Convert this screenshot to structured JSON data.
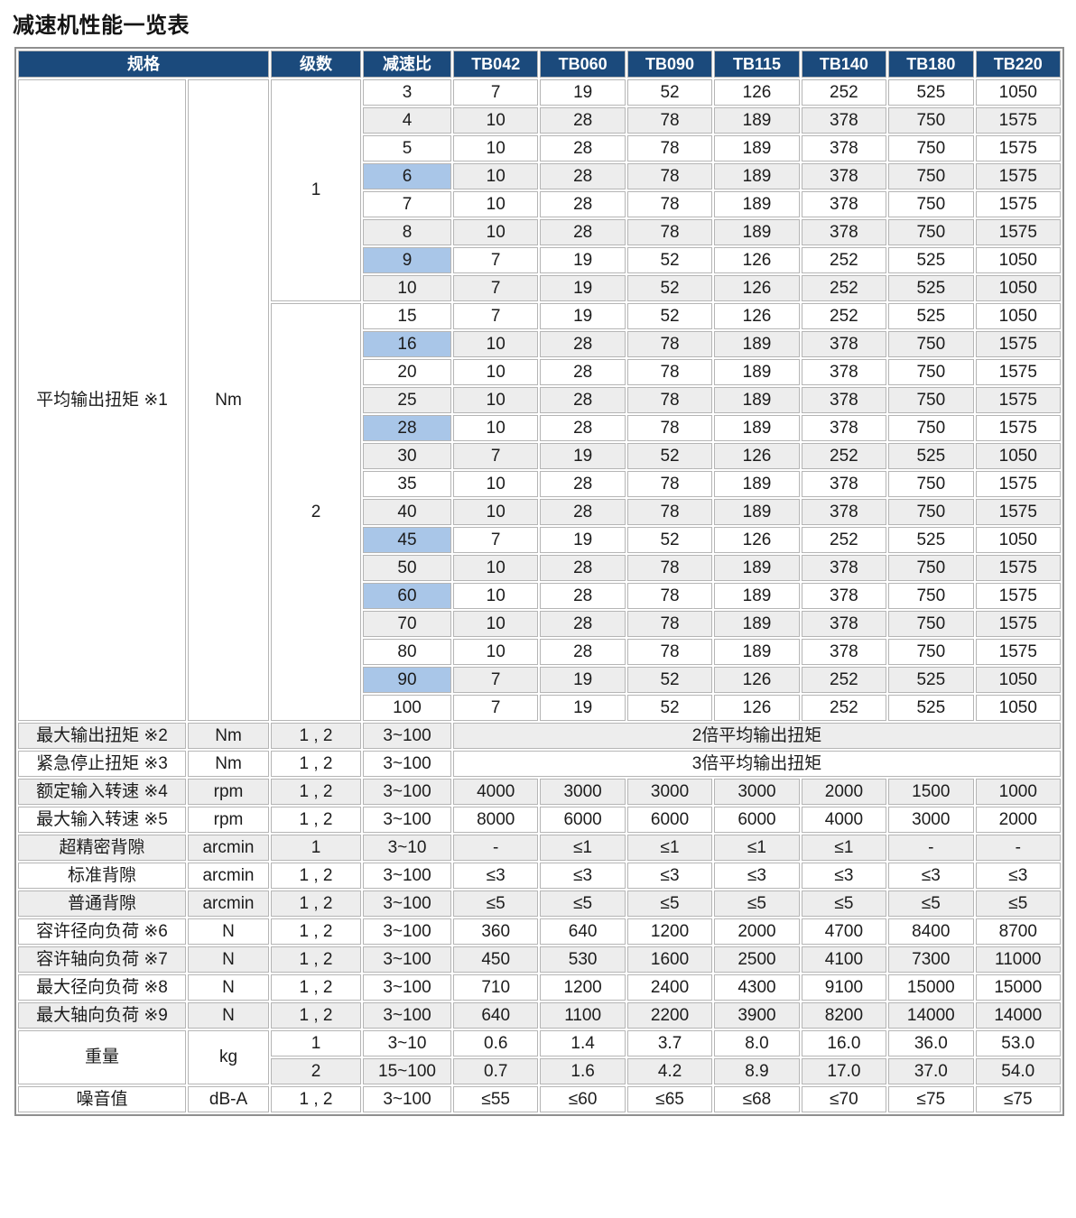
{
  "page_title": "减速机性能一览表",
  "colors": {
    "header_bg": "#1b4a7c",
    "header_text": "#ffffff",
    "row_stripe": "#ededed",
    "ratio_highlight": "#a9c6e8",
    "cell_border": "#b5b5b5",
    "outer_border": "#8f8f8f",
    "text": "#1c1c1c"
  },
  "table": {
    "header": {
      "spec": "规格",
      "stage": "级数",
      "ratio": "减速比",
      "models": [
        "TB042",
        "TB060",
        "TB090",
        "TB115",
        "TB140",
        "TB180",
        "TB220"
      ]
    },
    "avg_torque": {
      "label": "平均输出扭矩 ※1",
      "unit": "Nm",
      "stages": [
        {
          "stage": "1",
          "rows": [
            {
              "ratio": "3",
              "highlight": false,
              "values": [
                "7",
                "19",
                "52",
                "126",
                "252",
                "525",
                "1050"
              ]
            },
            {
              "ratio": "4",
              "highlight": false,
              "values": [
                "10",
                "28",
                "78",
                "189",
                "378",
                "750",
                "1575"
              ]
            },
            {
              "ratio": "5",
              "highlight": false,
              "values": [
                "10",
                "28",
                "78",
                "189",
                "378",
                "750",
                "1575"
              ]
            },
            {
              "ratio": "6",
              "highlight": true,
              "values": [
                "10",
                "28",
                "78",
                "189",
                "378",
                "750",
                "1575"
              ]
            },
            {
              "ratio": "7",
              "highlight": false,
              "values": [
                "10",
                "28",
                "78",
                "189",
                "378",
                "750",
                "1575"
              ]
            },
            {
              "ratio": "8",
              "highlight": false,
              "values": [
                "10",
                "28",
                "78",
                "189",
                "378",
                "750",
                "1575"
              ]
            },
            {
              "ratio": "9",
              "highlight": true,
              "values": [
                "7",
                "19",
                "52",
                "126",
                "252",
                "525",
                "1050"
              ]
            },
            {
              "ratio": "10",
              "highlight": false,
              "values": [
                "7",
                "19",
                "52",
                "126",
                "252",
                "525",
                "1050"
              ]
            }
          ]
        },
        {
          "stage": "2",
          "rows": [
            {
              "ratio": "15",
              "highlight": false,
              "values": [
                "7",
                "19",
                "52",
                "126",
                "252",
                "525",
                "1050"
              ]
            },
            {
              "ratio": "16",
              "highlight": true,
              "values": [
                "10",
                "28",
                "78",
                "189",
                "378",
                "750",
                "1575"
              ]
            },
            {
              "ratio": "20",
              "highlight": false,
              "values": [
                "10",
                "28",
                "78",
                "189",
                "378",
                "750",
                "1575"
              ]
            },
            {
              "ratio": "25",
              "highlight": false,
              "values": [
                "10",
                "28",
                "78",
                "189",
                "378",
                "750",
                "1575"
              ]
            },
            {
              "ratio": "28",
              "highlight": true,
              "values": [
                "10",
                "28",
                "78",
                "189",
                "378",
                "750",
                "1575"
              ]
            },
            {
              "ratio": "30",
              "highlight": false,
              "values": [
                "7",
                "19",
                "52",
                "126",
                "252",
                "525",
                "1050"
              ]
            },
            {
              "ratio": "35",
              "highlight": false,
              "values": [
                "10",
                "28",
                "78",
                "189",
                "378",
                "750",
                "1575"
              ]
            },
            {
              "ratio": "40",
              "highlight": false,
              "values": [
                "10",
                "28",
                "78",
                "189",
                "378",
                "750",
                "1575"
              ]
            },
            {
              "ratio": "45",
              "highlight": true,
              "values": [
                "7",
                "19",
                "52",
                "126",
                "252",
                "525",
                "1050"
              ]
            },
            {
              "ratio": "50",
              "highlight": false,
              "values": [
                "10",
                "28",
                "78",
                "189",
                "378",
                "750",
                "1575"
              ]
            },
            {
              "ratio": "60",
              "highlight": true,
              "values": [
                "10",
                "28",
                "78",
                "189",
                "378",
                "750",
                "1575"
              ]
            },
            {
              "ratio": "70",
              "highlight": false,
              "values": [
                "10",
                "28",
                "78",
                "189",
                "378",
                "750",
                "1575"
              ]
            },
            {
              "ratio": "80",
              "highlight": false,
              "values": [
                "10",
                "28",
                "78",
                "189",
                "378",
                "750",
                "1575"
              ]
            },
            {
              "ratio": "90",
              "highlight": true,
              "values": [
                "7",
                "19",
                "52",
                "126",
                "252",
                "525",
                "1050"
              ]
            },
            {
              "ratio": "100",
              "highlight": false,
              "values": [
                "7",
                "19",
                "52",
                "126",
                "252",
                "525",
                "1050"
              ]
            }
          ]
        }
      ]
    },
    "spec_rows": [
      {
        "label": "最大输出扭矩 ※2",
        "unit": "Nm",
        "stage": "1 , 2",
        "ratio": "3~100",
        "span": "2倍平均输出扭矩"
      },
      {
        "label": "紧急停止扭矩 ※3",
        "unit": "Nm",
        "stage": "1 , 2",
        "ratio": "3~100",
        "span": "3倍平均输出扭矩"
      },
      {
        "label": "额定输入转速 ※4",
        "unit": "rpm",
        "stage": "1 , 2",
        "ratio": "3~100",
        "values": [
          "4000",
          "3000",
          "3000",
          "3000",
          "2000",
          "1500",
          "1000"
        ]
      },
      {
        "label": "最大输入转速 ※5",
        "unit": "rpm",
        "stage": "1 , 2",
        "ratio": "3~100",
        "values": [
          "8000",
          "6000",
          "6000",
          "6000",
          "4000",
          "3000",
          "2000"
        ]
      },
      {
        "label": "超精密背隙",
        "unit": "arcmin",
        "stage": "1",
        "ratio": "3~10",
        "values": [
          "-",
          "≤1",
          "≤1",
          "≤1",
          "≤1",
          "-",
          "-"
        ]
      },
      {
        "label": "标准背隙",
        "unit": "arcmin",
        "stage": "1 , 2",
        "ratio": "3~100",
        "values": [
          "≤3",
          "≤3",
          "≤3",
          "≤3",
          "≤3",
          "≤3",
          "≤3"
        ]
      },
      {
        "label": "普通背隙",
        "unit": "arcmin",
        "stage": "1 , 2",
        "ratio": "3~100",
        "values": [
          "≤5",
          "≤5",
          "≤5",
          "≤5",
          "≤5",
          "≤5",
          "≤5"
        ]
      },
      {
        "label": "容许径向负荷 ※6",
        "unit": "N",
        "stage": "1 , 2",
        "ratio": "3~100",
        "values": [
          "360",
          "640",
          "1200",
          "2000",
          "4700",
          "8400",
          "8700"
        ]
      },
      {
        "label": "容许轴向负荷 ※7",
        "unit": "N",
        "stage": "1 , 2",
        "ratio": "3~100",
        "values": [
          "450",
          "530",
          "1600",
          "2500",
          "4100",
          "7300",
          "11000"
        ]
      },
      {
        "label": "最大径向负荷 ※8",
        "unit": "N",
        "stage": "1 , 2",
        "ratio": "3~100",
        "values": [
          "710",
          "1200",
          "2400",
          "4300",
          "9100",
          "15000",
          "15000"
        ]
      },
      {
        "label": "最大轴向负荷 ※9",
        "unit": "N",
        "stage": "1 , 2",
        "ratio": "3~100",
        "values": [
          "640",
          "1100",
          "2200",
          "3900",
          "8200",
          "14000",
          "14000"
        ]
      }
    ],
    "weight": {
      "label": "重量",
      "unit": "kg",
      "rows": [
        {
          "stage": "1",
          "ratio": "3~10",
          "values": [
            "0.6",
            "1.4",
            "3.7",
            "8.0",
            "16.0",
            "36.0",
            "53.0"
          ]
        },
        {
          "stage": "2",
          "ratio": "15~100",
          "values": [
            "0.7",
            "1.6",
            "4.2",
            "8.9",
            "17.0",
            "37.0",
            "54.0"
          ]
        }
      ]
    },
    "noise": {
      "label": "噪音值",
      "unit": "dB-A",
      "stage": "1 , 2",
      "ratio": "3~100",
      "values": [
        "≤55",
        "≤60",
        "≤65",
        "≤68",
        "≤70",
        "≤75",
        "≤75"
      ]
    }
  }
}
